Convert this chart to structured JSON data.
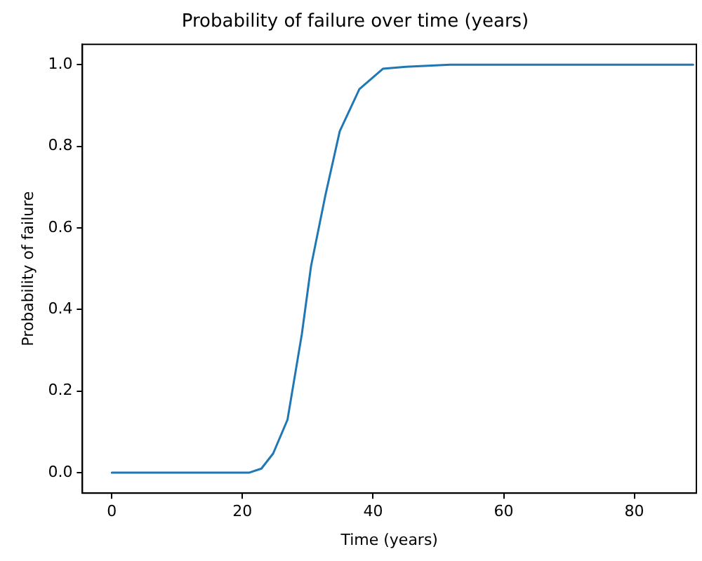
{
  "chart_data": {
    "type": "line",
    "title": "Probability of failure over time (years)",
    "xlabel": "Time (years)",
    "ylabel": "Probability of failure",
    "x": [
      0,
      10,
      21,
      22.9,
      24.7,
      26.9,
      29.1,
      30.5,
      32.7,
      34.9,
      37.9,
      41.5,
      45,
      51.8,
      60,
      70,
      80,
      89
    ],
    "series": [
      {
        "color": "#1f77b4",
        "values": [
          0,
          0,
          0,
          0.01,
          0.047,
          0.13,
          0.34,
          0.506,
          0.68,
          0.837,
          0.94,
          0.99,
          0.995,
          1.0,
          1.0,
          1.0,
          1.0,
          1.0
        ]
      }
    ],
    "xlim": [
      -4.5,
      89.5
    ],
    "xticks": [
      0,
      20,
      40,
      60,
      80
    ],
    "ylim": [
      -0.05,
      1.05
    ],
    "yticks": [
      {
        "value": 0,
        "label": "0.0"
      },
      0.2,
      0.4,
      0.6,
      0.8,
      {
        "value": 1,
        "label": "1.0"
      }
    ],
    "grid": false,
    "legend": false,
    "marker": "none",
    "line_style": "solid"
  }
}
